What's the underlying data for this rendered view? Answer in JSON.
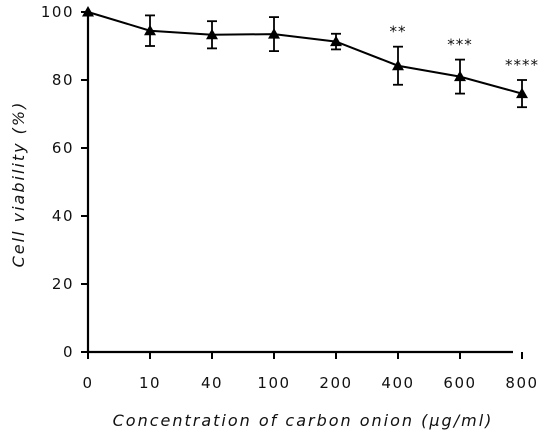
{
  "chart_data": {
    "type": "line",
    "xlabel": "Concentration of carbon onion (μg/ml)",
    "ylabel": "Cell viability (%)",
    "categories": [
      "0",
      "10",
      "40",
      "100",
      "200",
      "400",
      "600",
      "800"
    ],
    "yticks": [
      "0",
      "20",
      "40",
      "60",
      "80",
      "100"
    ],
    "ylim": [
      0,
      100
    ],
    "grid": false,
    "series": [
      {
        "values": [
          100,
          94.5,
          93.3,
          93.5,
          91.3,
          84.2,
          81.0,
          76.0
        ],
        "errors": [
          0,
          4.5,
          4.0,
          5.0,
          2.3,
          5.6,
          5.0,
          4.0
        ],
        "marker": "triangle",
        "color": "#000000"
      }
    ],
    "annotations": [
      {
        "category": "400",
        "text": "**"
      },
      {
        "category": "600",
        "text": "***"
      },
      {
        "category": "800",
        "text": "****"
      }
    ]
  }
}
